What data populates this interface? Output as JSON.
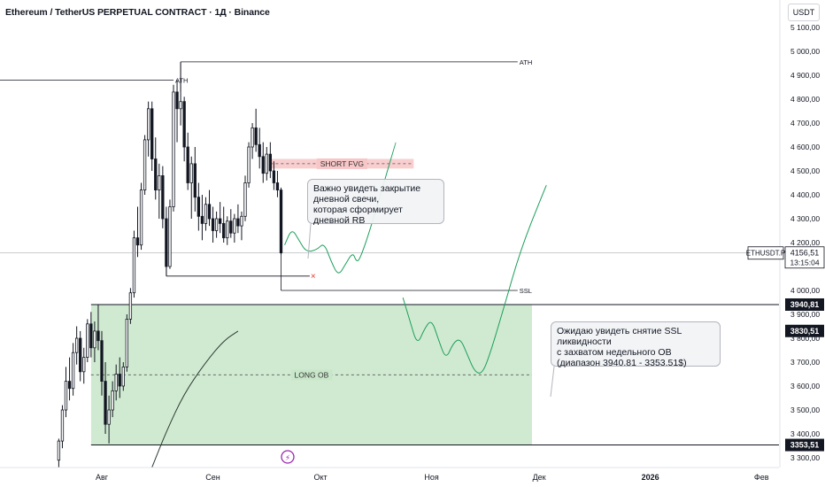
{
  "header": {
    "title": "Ethereum / TetherUS PERPETUAL CONTRACT · 1Д · Binance",
    "currency": "USDT"
  },
  "chart_data": {
    "type": "candlestick",
    "timeframe": "1Д",
    "y_range": [
      3300,
      5150
    ],
    "x_labels": [
      {
        "label": "Авг",
        "day": 0
      },
      {
        "label": "Сен",
        "day": 31
      },
      {
        "label": "Окт",
        "day": 61
      },
      {
        "label": "Ноя",
        "day": 92
      },
      {
        "label": "Дек",
        "day": 122
      },
      {
        "label": "2026",
        "day": 153
      },
      {
        "label": "Фев",
        "day": 184
      }
    ],
    "price_ticks": [
      5100,
      5000,
      4900,
      4800,
      4700,
      4600,
      4500,
      4400,
      4300,
      4200,
      4000,
      3900,
      3800,
      3700,
      3600,
      3500,
      3400,
      3300
    ],
    "tick_format_suffix": ",00",
    "current_price": {
      "symbol": "ETHUSDT.P",
      "value": "4156,51",
      "countdown": "13:15:04",
      "color": "#131722"
    },
    "price_badges": [
      {
        "value": "3940,81",
        "price": 3940.81
      },
      {
        "value": "3830,51",
        "price": 3830.51
      },
      {
        "value": "3353,51",
        "price": 3353.51
      }
    ],
    "levels": [
      {
        "label": "ATH",
        "price": 4956,
        "from_day": 22,
        "to_day": 116
      },
      {
        "label": "ATH",
        "price": 4880,
        "from_day": -30,
        "to_day": 20
      },
      {
        "label": "SSL",
        "price": 4000,
        "from_day": 50,
        "to_day": 116
      },
      {
        "label": "",
        "price": 4060,
        "from_day": 18,
        "to_day": 58,
        "marker": "x"
      }
    ],
    "zones": [
      {
        "label": "SHORT FVG",
        "top": 4550,
        "bottom": 4510,
        "from_day": 47,
        "to_day": 87,
        "color": "#f7c6c7"
      },
      {
        "label": "LONG OB",
        "top": 3940.81,
        "bottom": 3353.51,
        "from_day": -3,
        "to_day": 120,
        "mid": 3647,
        "color": "#c8e6c9"
      }
    ],
    "horizontal_lines": [
      3940.81,
      3353.51
    ],
    "candles": [
      {
        "d": -12,
        "o": 3290,
        "h": 3380,
        "l": 3260,
        "c": 3370
      },
      {
        "d": -11,
        "o": 3370,
        "h": 3520,
        "l": 3340,
        "c": 3500
      },
      {
        "d": -10,
        "o": 3500,
        "h": 3680,
        "l": 3470,
        "c": 3620
      },
      {
        "d": -9,
        "o": 3620,
        "h": 3720,
        "l": 3540,
        "c": 3590
      },
      {
        "d": -8,
        "o": 3590,
        "h": 3780,
        "l": 3560,
        "c": 3740
      },
      {
        "d": -7,
        "o": 3740,
        "h": 3850,
        "l": 3690,
        "c": 3800
      },
      {
        "d": -6,
        "o": 3800,
        "h": 3830,
        "l": 3620,
        "c": 3660
      },
      {
        "d": -5,
        "o": 3660,
        "h": 3760,
        "l": 3610,
        "c": 3720
      },
      {
        "d": -4,
        "o": 3720,
        "h": 3880,
        "l": 3700,
        "c": 3860
      },
      {
        "d": -3,
        "o": 3860,
        "h": 3910,
        "l": 3720,
        "c": 3760
      },
      {
        "d": -2,
        "o": 3760,
        "h": 3870,
        "l": 3700,
        "c": 3830
      },
      {
        "d": -1,
        "o": 3830,
        "h": 3940,
        "l": 3750,
        "c": 3790
      },
      {
        "d": 0,
        "o": 3790,
        "h": 3830,
        "l": 3560,
        "c": 3620
      },
      {
        "d": 1,
        "o": 3620,
        "h": 3700,
        "l": 3400,
        "c": 3440
      },
      {
        "d": 2,
        "o": 3440,
        "h": 3560,
        "l": 3360,
        "c": 3500
      },
      {
        "d": 3,
        "o": 3500,
        "h": 3620,
        "l": 3470,
        "c": 3580
      },
      {
        "d": 4,
        "o": 3580,
        "h": 3690,
        "l": 3540,
        "c": 3650
      },
      {
        "d": 5,
        "o": 3650,
        "h": 3720,
        "l": 3550,
        "c": 3600
      },
      {
        "d": 6,
        "o": 3600,
        "h": 3700,
        "l": 3580,
        "c": 3680
      },
      {
        "d": 7,
        "o": 3680,
        "h": 3900,
        "l": 3660,
        "c": 3880
      },
      {
        "d": 8,
        "o": 3880,
        "h": 4010,
        "l": 3860,
        "c": 3990
      },
      {
        "d": 9,
        "o": 3990,
        "h": 4250,
        "l": 3970,
        "c": 4220
      },
      {
        "d": 10,
        "o": 4220,
        "h": 4350,
        "l": 4140,
        "c": 4190
      },
      {
        "d": 11,
        "o": 4190,
        "h": 4450,
        "l": 4170,
        "c": 4420
      },
      {
        "d": 12,
        "o": 4420,
        "h": 4650,
        "l": 4400,
        "c": 4630
      },
      {
        "d": 13,
        "o": 4630,
        "h": 4790,
        "l": 4560,
        "c": 4760
      },
      {
        "d": 14,
        "o": 4760,
        "h": 4790,
        "l": 4500,
        "c": 4550
      },
      {
        "d": 15,
        "o": 4550,
        "h": 4640,
        "l": 4380,
        "c": 4420
      },
      {
        "d": 16,
        "o": 4420,
        "h": 4530,
        "l": 4300,
        "c": 4480
      },
      {
        "d": 17,
        "o": 4480,
        "h": 4520,
        "l": 4260,
        "c": 4300
      },
      {
        "d": 18,
        "o": 4300,
        "h": 4350,
        "l": 4060,
        "c": 4100
      },
      {
        "d": 19,
        "o": 4100,
        "h": 4380,
        "l": 4090,
        "c": 4350
      },
      {
        "d": 20,
        "o": 4350,
        "h": 4860,
        "l": 4330,
        "c": 4830
      },
      {
        "d": 21,
        "o": 4830,
        "h": 4880,
        "l": 4620,
        "c": 4760
      },
      {
        "d": 22,
        "o": 4760,
        "h": 4956,
        "l": 4690,
        "c": 4790
      },
      {
        "d": 23,
        "o": 4790,
        "h": 4810,
        "l": 4540,
        "c": 4600
      },
      {
        "d": 24,
        "o": 4600,
        "h": 4660,
        "l": 4420,
        "c": 4450
      },
      {
        "d": 25,
        "o": 4450,
        "h": 4560,
        "l": 4300,
        "c": 4530
      },
      {
        "d": 26,
        "o": 4530,
        "h": 4600,
        "l": 4330,
        "c": 4390
      },
      {
        "d": 27,
        "o": 4390,
        "h": 4450,
        "l": 4250,
        "c": 4310
      },
      {
        "d": 28,
        "o": 4310,
        "h": 4400,
        "l": 4210,
        "c": 4280
      },
      {
        "d": 29,
        "o": 4280,
        "h": 4390,
        "l": 4250,
        "c": 4360
      },
      {
        "d": 30,
        "o": 4360,
        "h": 4420,
        "l": 4270,
        "c": 4300
      },
      {
        "d": 31,
        "o": 4300,
        "h": 4350,
        "l": 4200,
        "c": 4250
      },
      {
        "d": 32,
        "o": 4250,
        "h": 4330,
        "l": 4220,
        "c": 4300
      },
      {
        "d": 33,
        "o": 4300,
        "h": 4370,
        "l": 4240,
        "c": 4280
      },
      {
        "d": 34,
        "o": 4280,
        "h": 4350,
        "l": 4200,
        "c": 4220
      },
      {
        "d": 35,
        "o": 4220,
        "h": 4310,
        "l": 4190,
        "c": 4290
      },
      {
        "d": 36,
        "o": 4290,
        "h": 4340,
        "l": 4220,
        "c": 4240
      },
      {
        "d": 37,
        "o": 4240,
        "h": 4320,
        "l": 4200,
        "c": 4300
      },
      {
        "d": 38,
        "o": 4300,
        "h": 4360,
        "l": 4240,
        "c": 4270
      },
      {
        "d": 39,
        "o": 4270,
        "h": 4330,
        "l": 4210,
        "c": 4310
      },
      {
        "d": 40,
        "o": 4310,
        "h": 4480,
        "l": 4290,
        "c": 4450
      },
      {
        "d": 41,
        "o": 4450,
        "h": 4620,
        "l": 4430,
        "c": 4600
      },
      {
        "d": 42,
        "o": 4600,
        "h": 4700,
        "l": 4550,
        "c": 4680
      },
      {
        "d": 43,
        "o": 4680,
        "h": 4760,
        "l": 4580,
        "c": 4610
      },
      {
        "d": 44,
        "o": 4610,
        "h": 4680,
        "l": 4510,
        "c": 4560
      },
      {
        "d": 45,
        "o": 4560,
        "h": 4620,
        "l": 4450,
        "c": 4490
      },
      {
        "d": 46,
        "o": 4490,
        "h": 4600,
        "l": 4460,
        "c": 4570
      },
      {
        "d": 47,
        "o": 4570,
        "h": 4620,
        "l": 4470,
        "c": 4500
      },
      {
        "d": 48,
        "o": 4500,
        "h": 4540,
        "l": 4420,
        "c": 4450
      },
      {
        "d": 49,
        "o": 4450,
        "h": 4500,
        "l": 4390,
        "c": 4420
      },
      {
        "d": 50,
        "o": 4420,
        "h": 4430,
        "l": 4150,
        "c": 4157
      }
    ],
    "projections": [
      {
        "from_day": 51,
        "points": [
          [
            51,
            4190
          ],
          [
            53,
            4260
          ],
          [
            55,
            4210
          ],
          [
            57,
            4160
          ],
          [
            60,
            4170
          ],
          [
            62,
            4200
          ],
          [
            64,
            4120
          ],
          [
            66,
            4060
          ],
          [
            68,
            4110
          ],
          [
            70,
            4160
          ],
          [
            71,
            4120
          ],
          [
            72,
            4130
          ],
          [
            75,
            4260
          ],
          [
            82,
            4620
          ]
        ]
      },
      {
        "from_day": 84,
        "points": [
          [
            84,
            3970
          ],
          [
            86,
            3870
          ],
          [
            88,
            3770
          ],
          [
            90,
            3840
          ],
          [
            92,
            3880
          ],
          [
            94,
            3790
          ],
          [
            96,
            3710
          ],
          [
            98,
            3780
          ],
          [
            100,
            3800
          ],
          [
            102,
            3730
          ],
          [
            104,
            3660
          ],
          [
            106,
            3650
          ],
          [
            108,
            3720
          ],
          [
            112,
            3920
          ],
          [
            117,
            4180
          ],
          [
            124,
            4440
          ]
        ]
      },
      {
        "from_day": 14,
        "points": [
          [
            14,
            3260
          ],
          [
            18,
            3410
          ],
          [
            23,
            3570
          ],
          [
            29,
            3700
          ],
          [
            34,
            3790
          ],
          [
            38,
            3830
          ]
        ]
      }
    ],
    "annotations": [
      {
        "text": "Важно увидеть закрытие\nдневной свечи,\nкоторая сформирует дневной RB"
      },
      {
        "text": "Ожидаю увидеть снятие SSL ликвидности\nс захватом недельного ОВ\n(диапазон 3940.81 - 3353.51$)"
      }
    ],
    "colors": {
      "up": "#26a69a",
      "down": "#131722",
      "candle": "#131722",
      "projection": "#1b9e5a",
      "ob": "#c8e6c9",
      "fvg": "#f7c6c7"
    }
  }
}
